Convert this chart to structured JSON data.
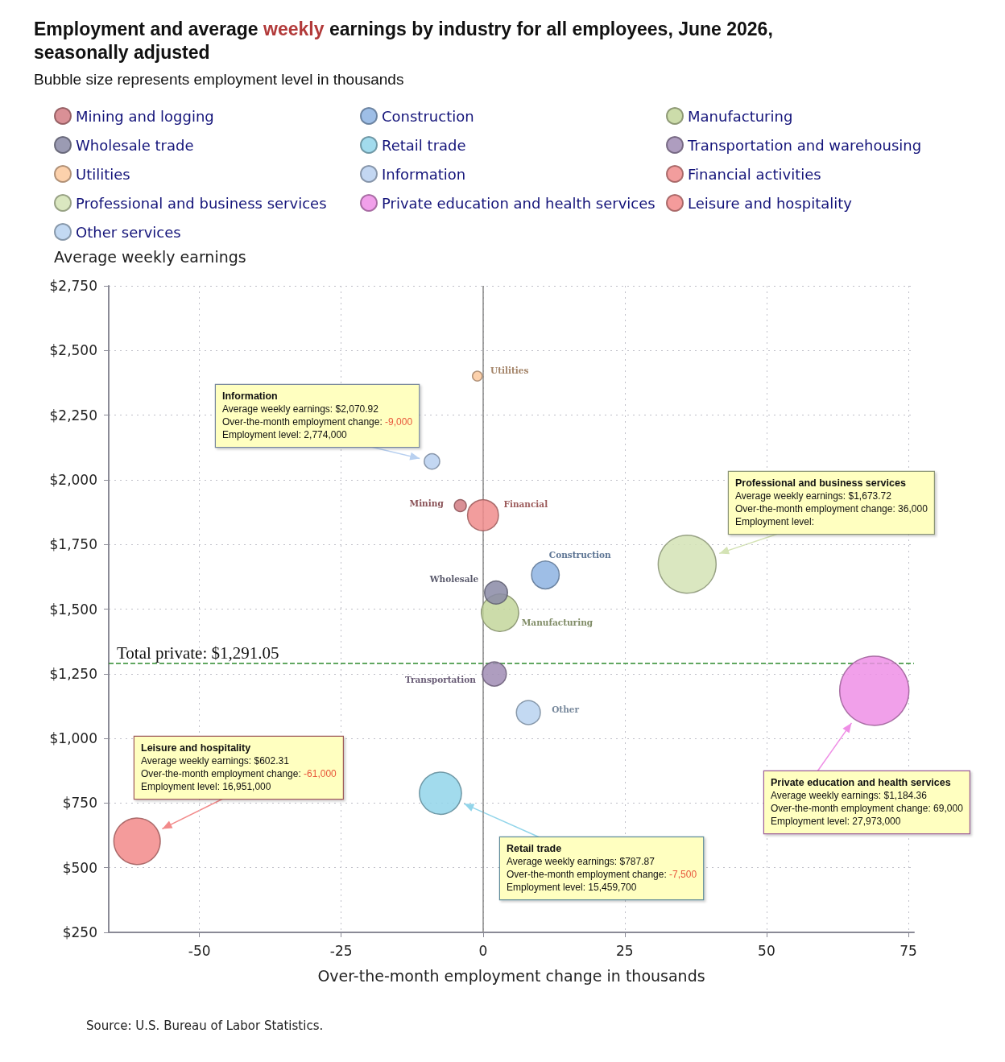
{
  "chart_data": {
    "type": "bubble",
    "title": "Employment and average weekly earnings by industry for all employees, June 2026, seasonally adjusted",
    "subtitle": "Bubble size represents employment level in thousands",
    "xlabel": "Over-the-month employment change in thousands",
    "ylabel": "Average weekly earnings",
    "xlim": [
      -66,
      76
    ],
    "xticks": [
      -50,
      -25,
      0,
      25,
      50,
      75
    ],
    "ylim": [
      250,
      2750
    ],
    "yticks": [
      {
        "value": 250,
        "label": "$250"
      },
      {
        "value": 500,
        "label": "$500"
      },
      {
        "value": 750,
        "label": "$750"
      },
      {
        "value": 1000,
        "label": "$1,000"
      },
      {
        "value": 1250,
        "label": "$1,250"
      },
      {
        "value": 1500,
        "label": "$1,500"
      },
      {
        "value": 1750,
        "label": "$1,750"
      },
      {
        "value": 2000,
        "label": "$2,000"
      },
      {
        "value": 2250,
        "label": "$2,250"
      },
      {
        "value": 2500,
        "label": "$2,500"
      },
      {
        "value": 2750,
        "label": "$2,750"
      }
    ],
    "grid": true,
    "legend": "top left",
    "marker": "circle",
    "series": [
      {
        "name": "Mining and logging",
        "color": "#d27d84",
        "x": [
          -4
        ],
        "values": [
          1900
        ],
        "sizes": [
          0.03
        ]
      },
      {
        "name": "Construction",
        "color": "#8db3e2",
        "x": [
          11
        ],
        "values": [
          1632
        ],
        "sizes": [
          0.16
        ]
      },
      {
        "name": "Manufacturing",
        "color": "#c3d69b",
        "x": [
          3
        ],
        "values": [
          1486
        ],
        "sizes": [
          0.29
        ]
      },
      {
        "name": "Wholesale trade",
        "color": "#8a8aa6",
        "x": [
          2.3
        ],
        "values": [
          1564
        ],
        "sizes": [
          0.11
        ]
      },
      {
        "name": "Retail trade",
        "color": "#92d5ea",
        "x": [
          -7.5
        ],
        "values": [
          787.87
        ],
        "sizes": [
          0.37
        ]
      },
      {
        "name": "Transportation and warehousing",
        "color": "#a08cb4",
        "x": [
          2
        ],
        "values": [
          1249
        ],
        "sizes": [
          0.12
        ]
      },
      {
        "name": "Utilities",
        "color": "#fbc99e",
        "x": [
          -1
        ],
        "values": [
          2401
        ],
        "sizes": [
          0.02
        ]
      },
      {
        "name": "Information",
        "color": "#b8d0f0",
        "x": [
          -9
        ],
        "values": [
          2070.92
        ],
        "sizes": [
          0.05
        ]
      },
      {
        "name": "Financial activities",
        "color": "#f08c8c",
        "x": [
          0
        ],
        "values": [
          1863
        ],
        "sizes": [
          0.2
        ]
      },
      {
        "name": "Professional and business services",
        "color": "#d4e3b5",
        "x": [
          36
        ],
        "values": [
          1673.72
        ],
        "sizes": [
          0.7
        ]
      },
      {
        "name": "Private education and health services",
        "color": "#ef8fe6",
        "x": [
          69
        ],
        "values": [
          1184.36
        ],
        "sizes": [
          1
        ]
      },
      {
        "name": "Leisure and hospitality",
        "color": "#f28a8a",
        "x": [
          -61
        ],
        "values": [
          602.31
        ],
        "sizes": [
          0.45
        ]
      },
      {
        "name": "Other services",
        "color": "#b8d2f0",
        "x": [
          8
        ],
        "values": [
          1100
        ],
        "sizes": [
          0.12
        ]
      }
    ],
    "ref_lines": [
      {
        "axis": "y",
        "value": 1291.05,
        "label": "Total private: $1,291.05",
        "color": "#2e8b2e",
        "line_style": "dashed"
      },
      {
        "axis": "x",
        "value": 0,
        "color": "#888888",
        "line_style": "solid"
      }
    ],
    "annotations": [
      "Information\nAverage weekly earnings: $2,070.92\nOver-the-month employment change: -9,000\nEmployment level: 2,774,000",
      "Professional and business services\nAverage weekly earnings: $1,673.72\nOver-the-month employment change: 36,000\nEmployment level:",
      "Leisure and hospitality\nAverage weekly earnings: $602.31\nOver-the-month employment change: -61,000\nEmployment level: 16,951,000",
      "Retail trade\nAverage weekly earnings: $787.87\nOver-the-month employment change: -7,500\nEmployment level: 15,459,700",
      "Private education and health services\nAverage weekly earnings: $1,184.36\nOver-the-month employment change: 69,000\nEmployment level: 27,973,000",
      {
        "text": "Utilities",
        "x": -1,
        "y": 2401
      },
      {
        "text": "Mining",
        "x": -4,
        "y": 1900
      },
      {
        "text": "Financial",
        "x": 0,
        "y": 1863
      },
      {
        "text": "Construction",
        "x": 11,
        "y": 1632
      },
      {
        "text": "Wholesale",
        "x": 2.3,
        "y": 1564
      },
      {
        "text": "Manufacturing",
        "x": 3,
        "y": 1486
      },
      {
        "text": "Transportation",
        "x": 2,
        "y": 1249
      },
      {
        "text": "Other",
        "x": 8,
        "y": 1100
      },
      "Source: U.S. Bureau of Labor Statistics."
    ]
  }
}
